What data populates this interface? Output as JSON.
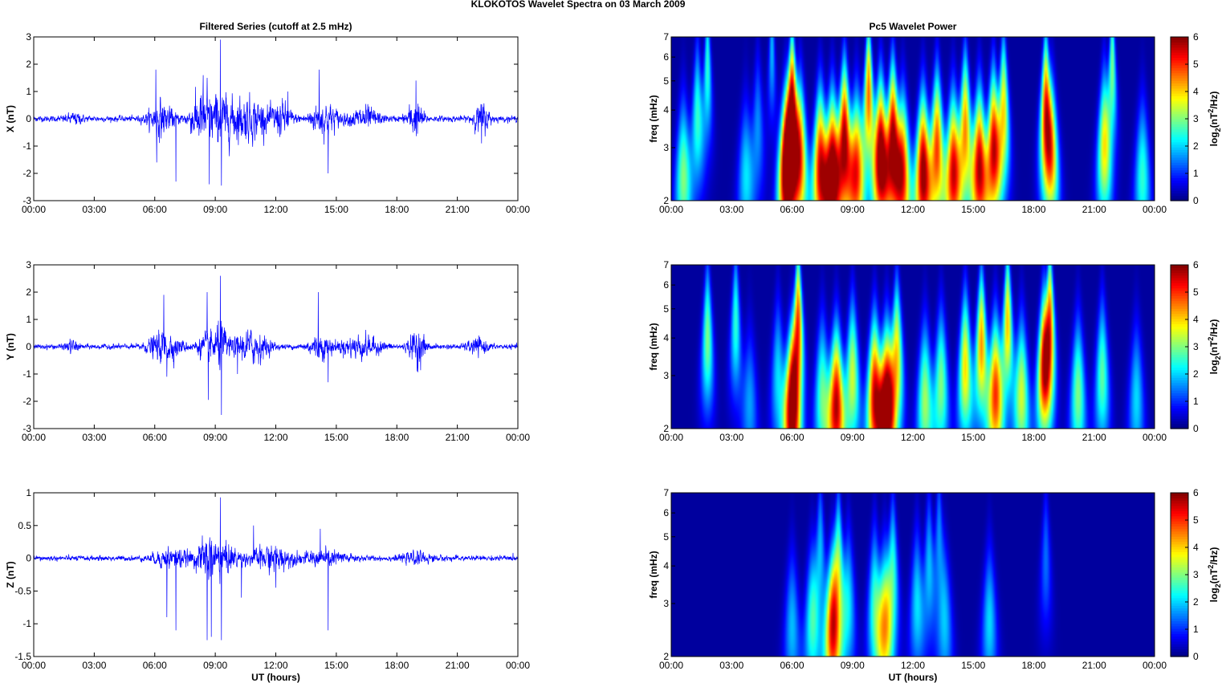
{
  "figure": {
    "suptitle": "KLOKOTOS Wavelet Spectra on 03 March     2009",
    "left_title": "Filtered Series (cutoff at 2.5 mHz)",
    "right_title": "Pc5 Wavelet Power",
    "xlabel": "UT (hours)",
    "right_ylabel": "freq (mHz)",
    "colorbar_label": "log2(nT2/Hz)",
    "colors": {
      "series_line": "#0000ff",
      "background": "#00008f"
    }
  },
  "chart_data": [
    {
      "type": "line",
      "component": "X",
      "title": "Filtered Series (cutoff at 2.5 mHz)",
      "ylabel": "X (nT)",
      "xlabel": "",
      "xlim": [
        0,
        24
      ],
      "ylim": [
        -3,
        3
      ],
      "yticks": [
        -3,
        -2,
        -1,
        0,
        1,
        2,
        3
      ],
      "xticks": [
        "00:00",
        "03:00",
        "06:00",
        "09:00",
        "12:00",
        "15:00",
        "18:00",
        "21:00",
        "00:00"
      ],
      "base_noise": 0.08,
      "activity": [
        {
          "t": 2.0,
          "w": 0.4,
          "a": 0.12
        },
        {
          "t": 6.3,
          "w": 0.6,
          "a": 0.45
        },
        {
          "t": 8.2,
          "w": 0.5,
          "a": 0.45
        },
        {
          "t": 9.2,
          "w": 1.0,
          "a": 0.6
        },
        {
          "t": 10.8,
          "w": 0.9,
          "a": 0.5
        },
        {
          "t": 12.3,
          "w": 0.5,
          "a": 0.4
        },
        {
          "t": 14.4,
          "w": 0.7,
          "a": 0.45
        },
        {
          "t": 16.4,
          "w": 0.7,
          "a": 0.3
        },
        {
          "t": 18.9,
          "w": 0.4,
          "a": 0.45
        },
        {
          "t": 22.2,
          "w": 0.4,
          "a": 0.4
        }
      ],
      "spikes": [
        {
          "t": 6.05,
          "y": 1.8
        },
        {
          "t": 6.1,
          "y": -1.6
        },
        {
          "t": 7.05,
          "y": -2.3
        },
        {
          "t": 8.6,
          "y": 1.5
        },
        {
          "t": 8.7,
          "y": -2.4
        },
        {
          "t": 9.25,
          "y": 2.9
        },
        {
          "t": 9.3,
          "y": -2.45
        },
        {
          "t": 8.4,
          "y": 1.6
        },
        {
          "t": 14.15,
          "y": 1.8
        },
        {
          "t": 14.6,
          "y": -2.0
        },
        {
          "t": 18.95,
          "y": 1.4
        },
        {
          "t": 12.6,
          "y": 1.0
        },
        {
          "t": 22.2,
          "y": -0.9
        }
      ]
    },
    {
      "type": "line",
      "component": "Y",
      "title": "",
      "ylabel": "Y (nT)",
      "xlabel": "",
      "xlim": [
        0,
        24
      ],
      "ylim": [
        -3,
        3
      ],
      "yticks": [
        -3,
        -2,
        -1,
        0,
        1,
        2,
        3
      ],
      "xticks": [
        "00:00",
        "03:00",
        "06:00",
        "09:00",
        "12:00",
        "15:00",
        "18:00",
        "21:00",
        "00:00"
      ],
      "base_noise": 0.07,
      "activity": [
        {
          "t": 1.9,
          "w": 0.3,
          "a": 0.15
        },
        {
          "t": 6.5,
          "w": 0.8,
          "a": 0.4
        },
        {
          "t": 8.6,
          "w": 0.5,
          "a": 0.35
        },
        {
          "t": 9.3,
          "w": 0.4,
          "a": 0.5
        },
        {
          "t": 10.8,
          "w": 0.8,
          "a": 0.45
        },
        {
          "t": 14.2,
          "w": 0.6,
          "a": 0.3
        },
        {
          "t": 16.2,
          "w": 1.0,
          "a": 0.3
        },
        {
          "t": 19.0,
          "w": 0.4,
          "a": 0.45
        },
        {
          "t": 22.0,
          "w": 0.5,
          "a": 0.2
        }
      ],
      "spikes": [
        {
          "t": 6.45,
          "y": 1.9
        },
        {
          "t": 6.6,
          "y": -1.1
        },
        {
          "t": 8.6,
          "y": 2.0
        },
        {
          "t": 8.65,
          "y": -1.95
        },
        {
          "t": 9.25,
          "y": 2.6
        },
        {
          "t": 9.3,
          "y": -2.5
        },
        {
          "t": 14.1,
          "y": 2.0
        },
        {
          "t": 14.6,
          "y": -1.3
        },
        {
          "t": 19.0,
          "y": -0.9
        },
        {
          "t": 10.1,
          "y": -1.0
        }
      ]
    },
    {
      "type": "line",
      "component": "Z",
      "title": "",
      "ylabel": "Z (nT)",
      "xlabel": "UT (hours)",
      "xlim": [
        0,
        24
      ],
      "ylim": [
        -1.5,
        1
      ],
      "yticks": [
        -1.5,
        -1,
        -0.5,
        0,
        0.5,
        1
      ],
      "xticks": [
        "00:00",
        "03:00",
        "06:00",
        "09:00",
        "12:00",
        "15:00",
        "18:00",
        "21:00",
        "00:00"
      ],
      "base_noise": 0.03,
      "activity": [
        {
          "t": 6.8,
          "w": 0.8,
          "a": 0.12
        },
        {
          "t": 8.6,
          "w": 0.6,
          "a": 0.18
        },
        {
          "t": 9.4,
          "w": 0.8,
          "a": 0.15
        },
        {
          "t": 11.8,
          "w": 1.0,
          "a": 0.14
        },
        {
          "t": 14.5,
          "w": 1.2,
          "a": 0.08
        },
        {
          "t": 19.0,
          "w": 0.8,
          "a": 0.05
        }
      ],
      "spikes": [
        {
          "t": 7.05,
          "y": -1.1
        },
        {
          "t": 8.6,
          "y": -1.25
        },
        {
          "t": 8.8,
          "y": -1.2
        },
        {
          "t": 9.25,
          "y": 0.93
        },
        {
          "t": 9.3,
          "y": -1.25
        },
        {
          "t": 10.9,
          "y": 0.5
        },
        {
          "t": 14.6,
          "y": -1.1
        },
        {
          "t": 14.2,
          "y": 0.45
        },
        {
          "t": 6.6,
          "y": -0.9
        },
        {
          "t": 10.3,
          "y": -0.6
        },
        {
          "t": 12.0,
          "y": -0.45
        }
      ]
    },
    {
      "type": "heatmap",
      "component": "X",
      "title": "Pc5 Wavelet Power",
      "ylabel": "freq (mHz)",
      "xlabel": "",
      "xlim": [
        0,
        24
      ],
      "ylim": [
        2,
        7
      ],
      "yscale": "log",
      "yticks": [
        2,
        3,
        4,
        5,
        6,
        7
      ],
      "xticks": [
        "00:00",
        "03:00",
        "06:00",
        "09:00",
        "12:00",
        "15:00",
        "18:00",
        "21:00",
        "00:00"
      ],
      "colorbar": {
        "label": "log2(nT2/Hz)",
        "range": [
          0,
          6
        ],
        "ticks": [
          0,
          1,
          2,
          3,
          4,
          5,
          6
        ],
        "colormap": "jet"
      },
      "streaks": [
        {
          "t": 0.6,
          "f": 2.4,
          "p": 3.0
        },
        {
          "t": 1.3,
          "f": 3.8,
          "p": 2.5
        },
        {
          "t": 1.8,
          "f": 5.5,
          "p": 2.5
        },
        {
          "t": 3.7,
          "f": 2.4,
          "p": 2.0
        },
        {
          "t": 4.3,
          "f": 3.5,
          "p": 1.5
        },
        {
          "t": 5.0,
          "f": 6.5,
          "p": 1.8
        },
        {
          "t": 5.7,
          "f": 2.5,
          "p": 6.2
        },
        {
          "t": 6.0,
          "f": 4.0,
          "p": 6.3
        },
        {
          "t": 6.4,
          "f": 2.8,
          "p": 4.5
        },
        {
          "t": 7.4,
          "f": 2.6,
          "p": 5.5
        },
        {
          "t": 8.0,
          "f": 2.5,
          "p": 6.3
        },
        {
          "t": 8.6,
          "f": 3.2,
          "p": 6.0
        },
        {
          "t": 9.2,
          "f": 2.5,
          "p": 5.0
        },
        {
          "t": 9.8,
          "f": 4.5,
          "p": 4.8
        },
        {
          "t": 10.4,
          "f": 2.8,
          "p": 6.5
        },
        {
          "t": 11.0,
          "f": 3.2,
          "p": 6.0
        },
        {
          "t": 11.5,
          "f": 2.5,
          "p": 5.0
        },
        {
          "t": 12.5,
          "f": 2.5,
          "p": 6.2
        },
        {
          "t": 13.2,
          "f": 3.0,
          "p": 5.0
        },
        {
          "t": 14.0,
          "f": 2.5,
          "p": 5.5
        },
        {
          "t": 14.6,
          "f": 3.5,
          "p": 4.5
        },
        {
          "t": 15.3,
          "f": 2.6,
          "p": 5.8
        },
        {
          "t": 16.0,
          "f": 3.0,
          "p": 5.5
        },
        {
          "t": 16.5,
          "f": 4.0,
          "p": 4.0
        },
        {
          "t": 18.6,
          "f": 4.0,
          "p": 5.2
        },
        {
          "t": 18.9,
          "f": 2.8,
          "p": 3.5
        },
        {
          "t": 21.5,
          "f": 3.0,
          "p": 3.8
        },
        {
          "t": 21.9,
          "f": 5.5,
          "p": 3.0
        },
        {
          "t": 23.4,
          "f": 2.4,
          "p": 2.5
        }
      ]
    },
    {
      "type": "heatmap",
      "component": "Y",
      "title": "",
      "ylabel": "freq (mHz)",
      "xlabel": "",
      "xlim": [
        0,
        24
      ],
      "ylim": [
        2,
        7
      ],
      "yscale": "log",
      "yticks": [
        2,
        3,
        4,
        5,
        6,
        7
      ],
      "xticks": [
        "00:00",
        "03:00",
        "06:00",
        "09:00",
        "12:00",
        "15:00",
        "18:00",
        "21:00",
        "00:00"
      ],
      "colorbar": {
        "label": "log2(nT2/Hz)",
        "range": [
          0,
          6
        ],
        "ticks": [
          0,
          1,
          2,
          3,
          4,
          5,
          6
        ],
        "colormap": "jet"
      },
      "streaks": [
        {
          "t": 1.8,
          "f": 4.0,
          "p": 3.0
        },
        {
          "t": 3.2,
          "f": 4.5,
          "p": 2.5
        },
        {
          "t": 3.9,
          "f": 2.4,
          "p": 1.6
        },
        {
          "t": 5.3,
          "f": 3.0,
          "p": 2.0
        },
        {
          "t": 6.0,
          "f": 2.3,
          "p": 6.3
        },
        {
          "t": 6.3,
          "f": 4.5,
          "p": 5.0
        },
        {
          "t": 7.5,
          "f": 2.6,
          "p": 2.8
        },
        {
          "t": 8.2,
          "f": 2.4,
          "p": 5.8
        },
        {
          "t": 9.0,
          "f": 3.0,
          "p": 3.5
        },
        {
          "t": 10.1,
          "f": 2.6,
          "p": 5.5
        },
        {
          "t": 10.7,
          "f": 2.4,
          "p": 6.5
        },
        {
          "t": 11.2,
          "f": 3.5,
          "p": 4.0
        },
        {
          "t": 12.6,
          "f": 2.5,
          "p": 3.2
        },
        {
          "t": 13.4,
          "f": 2.8,
          "p": 3.0
        },
        {
          "t": 14.6,
          "f": 3.2,
          "p": 4.0
        },
        {
          "t": 15.4,
          "f": 3.8,
          "p": 4.5
        },
        {
          "t": 16.1,
          "f": 2.6,
          "p": 5.0
        },
        {
          "t": 16.7,
          "f": 4.5,
          "p": 4.2
        },
        {
          "t": 17.4,
          "f": 2.6,
          "p": 3.5
        },
        {
          "t": 18.5,
          "f": 3.2,
          "p": 5.0
        },
        {
          "t": 18.8,
          "f": 4.5,
          "p": 4.8
        },
        {
          "t": 20.2,
          "f": 2.6,
          "p": 3.0
        },
        {
          "t": 21.4,
          "f": 3.0,
          "p": 2.8
        },
        {
          "t": 23.1,
          "f": 2.5,
          "p": 2.0
        }
      ]
    },
    {
      "type": "heatmap",
      "component": "Z",
      "title": "",
      "ylabel": "freq (mHz)",
      "xlabel": "UT (hours)",
      "xlim": [
        0,
        24
      ],
      "ylim": [
        2,
        7
      ],
      "yscale": "log",
      "yticks": [
        2,
        3,
        4,
        5,
        6,
        7
      ],
      "xticks": [
        "00:00",
        "03:00",
        "06:00",
        "09:00",
        "12:00",
        "15:00",
        "18:00",
        "21:00",
        "00:00"
      ],
      "colorbar": {
        "label": "log2(nT2/Hz)",
        "range": [
          0,
          6
        ],
        "ticks": [
          0,
          1,
          2,
          3,
          4,
          5,
          6
        ],
        "colormap": "jet"
      },
      "streaks": [
        {
          "t": 6.0,
          "f": 2.5,
          "p": 1.8
        },
        {
          "t": 7.0,
          "f": 2.6,
          "p": 2.5
        },
        {
          "t": 7.4,
          "f": 4.5,
          "p": 1.8
        },
        {
          "t": 8.0,
          "f": 2.4,
          "p": 5.0
        },
        {
          "t": 8.3,
          "f": 4.0,
          "p": 3.0
        },
        {
          "t": 8.8,
          "f": 3.0,
          "p": 2.0
        },
        {
          "t": 10.1,
          "f": 3.0,
          "p": 2.5
        },
        {
          "t": 10.6,
          "f": 2.5,
          "p": 3.8
        },
        {
          "t": 11.0,
          "f": 3.8,
          "p": 2.5
        },
        {
          "t": 12.2,
          "f": 3.0,
          "p": 2.0
        },
        {
          "t": 12.8,
          "f": 4.0,
          "p": 1.8
        },
        {
          "t": 13.3,
          "f": 5.0,
          "p": 1.5
        },
        {
          "t": 13.6,
          "f": 2.5,
          "p": 1.7
        },
        {
          "t": 15.8,
          "f": 2.6,
          "p": 2.0
        },
        {
          "t": 18.6,
          "f": 4.2,
          "p": 1.3
        }
      ]
    }
  ]
}
